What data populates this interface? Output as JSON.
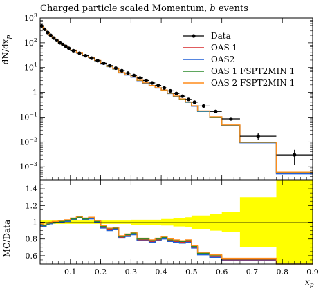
{
  "chart_data": [
    {
      "panel": "main",
      "type": "line",
      "title_text": "Charged particle scaled Momentum,",
      "title_italic": "b",
      "title_end": "events",
      "ylabel": "dN/dx",
      "ylabel_sub": "p",
      "yscale": "log",
      "ylim": [
        0.0003,
        1000
      ],
      "xlim": [
        0.0,
        0.9
      ],
      "y_ticks": [
        {
          "v": 1000,
          "base": "10",
          "exp": "3"
        },
        {
          "v": 100,
          "base": "10",
          "exp": "2"
        },
        {
          "v": 10,
          "base": "10",
          "exp": "1"
        },
        {
          "v": 1,
          "base": "1",
          "exp": ""
        },
        {
          "v": 0.1,
          "base": "10",
          "exp": "−1"
        },
        {
          "v": 0.01,
          "base": "10",
          "exp": "−2"
        },
        {
          "v": 0.001,
          "base": "10",
          "exp": "−3"
        }
      ],
      "bin_edges": [
        0.0,
        0.01,
        0.02,
        0.03,
        0.04,
        0.05,
        0.06,
        0.07,
        0.08,
        0.09,
        0.1,
        0.12,
        0.14,
        0.16,
        0.18,
        0.2,
        0.22,
        0.24,
        0.26,
        0.28,
        0.3,
        0.32,
        0.34,
        0.36,
        0.38,
        0.4,
        0.42,
        0.44,
        0.46,
        0.48,
        0.5,
        0.52,
        0.56,
        0.6,
        0.66,
        0.78,
        0.9
      ],
      "data": {
        "name": "Data",
        "x": [
          0.005,
          0.015,
          0.025,
          0.035,
          0.045,
          0.055,
          0.065,
          0.075,
          0.085,
          0.095,
          0.11,
          0.13,
          0.15,
          0.17,
          0.19,
          0.21,
          0.23,
          0.25,
          0.27,
          0.29,
          0.31,
          0.33,
          0.35,
          0.37,
          0.39,
          0.41,
          0.43,
          0.45,
          0.47,
          0.49,
          0.51,
          0.54,
          0.58,
          0.63,
          0.72,
          0.84
        ],
        "y": [
          480,
          350,
          260,
          200,
          155,
          125,
          100,
          85,
          72,
          60,
          48,
          38,
          30,
          24,
          19,
          15,
          12,
          9.5,
          7.5,
          6.0,
          4.8,
          3.8,
          3.0,
          2.4,
          1.9,
          1.5,
          1.15,
          0.9,
          0.7,
          0.52,
          0.4,
          0.28,
          0.17,
          0.085,
          0.017,
          0.003
        ],
        "yerr_rel": [
          0.02,
          0.02,
          0.02,
          0.02,
          0.02,
          0.02,
          0.02,
          0.02,
          0.02,
          0.02,
          0.02,
          0.02,
          0.02,
          0.02,
          0.02,
          0.02,
          0.02,
          0.02,
          0.02,
          0.02,
          0.03,
          0.03,
          0.03,
          0.03,
          0.03,
          0.04,
          0.04,
          0.05,
          0.05,
          0.06,
          0.08,
          0.08,
          0.1,
          0.12,
          0.3,
          0.6
        ]
      },
      "series": [
        {
          "name": "OAS 1",
          "color": "#d62728"
        },
        {
          "name": "OAS2",
          "color": "#1f5fd6"
        },
        {
          "name": "OAS 1 FSPT2MIN 1",
          "color": "#2a8a2a"
        },
        {
          "name": "OAS 2 FSPT2MIN 1",
          "color": "#ff8c1a"
        }
      ],
      "mc_ratio_to_data": [
        [
          0.97,
          0.96,
          0.98,
          0.99,
          1.0,
          1.0,
          1.01,
          1.01,
          1.02,
          1.02,
          1.04,
          1.06,
          1.04,
          1.05,
          1.01,
          0.94,
          0.91,
          0.92,
          0.82,
          0.84,
          0.86,
          0.79,
          0.79,
          0.77,
          0.79,
          0.81,
          0.78,
          0.77,
          0.76,
          0.77,
          0.7,
          0.62,
          0.59,
          0.55,
          0.55,
          0.18
        ],
        [
          0.96,
          0.95,
          0.97,
          0.98,
          0.99,
          1.0,
          1.0,
          1.0,
          1.01,
          1.01,
          1.03,
          1.05,
          1.03,
          1.04,
          1.0,
          0.93,
          0.9,
          0.91,
          0.81,
          0.83,
          0.85,
          0.78,
          0.78,
          0.76,
          0.78,
          0.8,
          0.77,
          0.76,
          0.75,
          0.76,
          0.69,
          0.61,
          0.58,
          0.54,
          0.54,
          0.17
        ],
        [
          0.97,
          0.96,
          0.98,
          0.99,
          1.0,
          1.0,
          1.01,
          1.01,
          1.02,
          1.02,
          1.04,
          1.06,
          1.04,
          1.05,
          1.01,
          0.95,
          0.92,
          0.93,
          0.83,
          0.85,
          0.87,
          0.8,
          0.8,
          0.78,
          0.8,
          0.82,
          0.79,
          0.78,
          0.77,
          0.78,
          0.71,
          0.63,
          0.6,
          0.56,
          0.56,
          0.19
        ],
        [
          0.98,
          0.97,
          0.99,
          1.0,
          1.01,
          1.01,
          1.02,
          1.02,
          1.03,
          1.03,
          1.05,
          1.07,
          1.05,
          1.06,
          1.02,
          0.96,
          0.93,
          0.94,
          0.84,
          0.86,
          0.88,
          0.81,
          0.81,
          0.79,
          0.81,
          0.83,
          0.8,
          0.79,
          0.78,
          0.79,
          0.72,
          0.64,
          0.61,
          0.57,
          0.57,
          0.2
        ]
      ]
    },
    {
      "panel": "ratio",
      "type": "line",
      "ylabel": "MC/Data",
      "xlabel": "x",
      "xlabel_sub": "p",
      "ylim": [
        0.5,
        1.5
      ],
      "xlim": [
        0.0,
        0.9
      ],
      "y_ticks": [
        "0.6",
        "0.8",
        "1",
        "1.2",
        "1.4"
      ],
      "x_ticks": [
        "0.1",
        "0.2",
        "0.3",
        "0.4",
        "0.5",
        "0.6",
        "0.7",
        "0.8",
        "0.9"
      ],
      "band_color": "#ffff00"
    }
  ]
}
